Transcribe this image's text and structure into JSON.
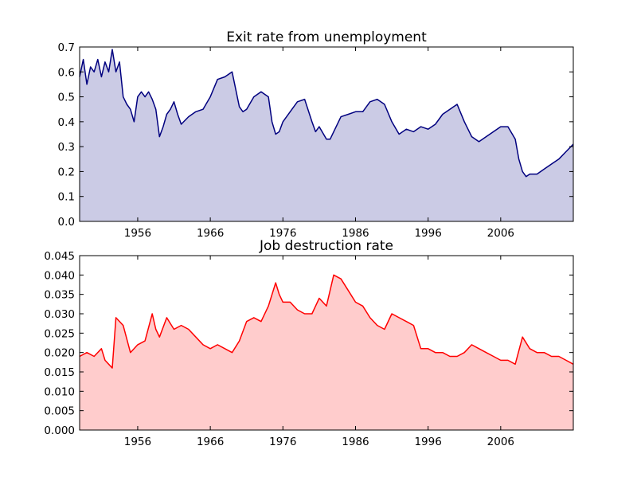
{
  "figure": {
    "background": "#ffffff"
  },
  "chart_data": [
    {
      "type": "area",
      "title": "Exit rate from unemployment",
      "xlabel": "",
      "ylabel": "",
      "xlim": [
        1948,
        2016
      ],
      "ylim": [
        0.0,
        0.7
      ],
      "x_ticks": [
        1956,
        1966,
        1976,
        1986,
        1996,
        2006
      ],
      "x_tick_labels": [
        "1956",
        "1966",
        "1976",
        "1986",
        "1996",
        "2006"
      ],
      "y_ticks": [
        0.0,
        0.1,
        0.2,
        0.3,
        0.4,
        0.5,
        0.6,
        0.7
      ],
      "y_tick_labels": [
        "0.0",
        "0.1",
        "0.2",
        "0.3",
        "0.4",
        "0.5",
        "0.6",
        "0.7"
      ],
      "grid": false,
      "line_color": "#00007f",
      "fill_color": "#cbcbe5",
      "x": [
        1948.0,
        1948.5,
        1949.0,
        1949.5,
        1950.0,
        1950.5,
        1951.0,
        1951.5,
        1952.0,
        1952.5,
        1953.0,
        1953.5,
        1954.0,
        1954.5,
        1955.0,
        1955.5,
        1956.0,
        1956.5,
        1957.0,
        1957.5,
        1958.0,
        1958.5,
        1959.0,
        1959.5,
        1960.0,
        1960.5,
        1961.0,
        1961.5,
        1962.0,
        1963.0,
        1964.0,
        1965.0,
        1966.0,
        1967.0,
        1968.0,
        1969.0,
        1970.0,
        1970.5,
        1971.0,
        1972.0,
        1973.0,
        1974.0,
        1974.5,
        1975.0,
        1975.5,
        1976.0,
        1977.0,
        1978.0,
        1979.0,
        1980.0,
        1980.5,
        1981.0,
        1982.0,
        1982.5,
        1983.0,
        1984.0,
        1985.0,
        1986.0,
        1987.0,
        1988.0,
        1989.0,
        1990.0,
        1991.0,
        1992.0,
        1993.0,
        1994.0,
        1995.0,
        1996.0,
        1997.0,
        1998.0,
        1999.0,
        2000.0,
        2001.0,
        2002.0,
        2003.0,
        2004.0,
        2005.0,
        2006.0,
        2007.0,
        2008.0,
        2008.5,
        2009.0,
        2009.5,
        2010.0,
        2011.0,
        2012.0,
        2013.0,
        2014.0,
        2015.0,
        2016.0
      ],
      "y": [
        0.58,
        0.65,
        0.55,
        0.62,
        0.6,
        0.65,
        0.58,
        0.64,
        0.6,
        0.69,
        0.6,
        0.64,
        0.5,
        0.47,
        0.45,
        0.4,
        0.5,
        0.52,
        0.5,
        0.52,
        0.49,
        0.45,
        0.34,
        0.38,
        0.43,
        0.45,
        0.48,
        0.43,
        0.39,
        0.42,
        0.44,
        0.45,
        0.5,
        0.57,
        0.58,
        0.6,
        0.46,
        0.44,
        0.45,
        0.5,
        0.52,
        0.5,
        0.4,
        0.35,
        0.36,
        0.4,
        0.44,
        0.48,
        0.49,
        0.4,
        0.36,
        0.38,
        0.33,
        0.33,
        0.36,
        0.42,
        0.43,
        0.44,
        0.44,
        0.48,
        0.49,
        0.47,
        0.4,
        0.35,
        0.37,
        0.36,
        0.38,
        0.37,
        0.39,
        0.43,
        0.45,
        0.47,
        0.4,
        0.34,
        0.32,
        0.34,
        0.36,
        0.38,
        0.38,
        0.33,
        0.25,
        0.2,
        0.18,
        0.19,
        0.19,
        0.21,
        0.23,
        0.25,
        0.28,
        0.31
      ]
    },
    {
      "type": "area",
      "title": "Job destruction rate",
      "xlabel": "",
      "ylabel": "",
      "xlim": [
        1948,
        2016
      ],
      "ylim": [
        0.0,
        0.045
      ],
      "x_ticks": [
        1956,
        1966,
        1976,
        1986,
        1996,
        2006
      ],
      "x_tick_labels": [
        "1956",
        "1966",
        "1976",
        "1986",
        "1996",
        "2006"
      ],
      "y_ticks": [
        0.0,
        0.005,
        0.01,
        0.015,
        0.02,
        0.025,
        0.03,
        0.035,
        0.04,
        0.045
      ],
      "y_tick_labels": [
        "0.000",
        "0.005",
        "0.010",
        "0.015",
        "0.020",
        "0.025",
        "0.030",
        "0.035",
        "0.040",
        "0.045"
      ],
      "grid": false,
      "line_color": "#ff0000",
      "fill_color": "#ffcccc",
      "x": [
        1948.0,
        1949.0,
        1950.0,
        1951.0,
        1951.5,
        1952.0,
        1952.5,
        1953.0,
        1954.0,
        1955.0,
        1956.0,
        1957.0,
        1958.0,
        1958.5,
        1959.0,
        1960.0,
        1961.0,
        1962.0,
        1963.0,
        1964.0,
        1965.0,
        1966.0,
        1967.0,
        1968.0,
        1969.0,
        1970.0,
        1971.0,
        1972.0,
        1973.0,
        1974.0,
        1975.0,
        1975.5,
        1976.0,
        1977.0,
        1978.0,
        1979.0,
        1980.0,
        1981.0,
        1982.0,
        1983.0,
        1984.0,
        1985.0,
        1986.0,
        1987.0,
        1988.0,
        1989.0,
        1990.0,
        1991.0,
        1992.0,
        1993.0,
        1994.0,
        1995.0,
        1996.0,
        1997.0,
        1998.0,
        1999.0,
        2000.0,
        2001.0,
        2002.0,
        2003.0,
        2004.0,
        2005.0,
        2006.0,
        2007.0,
        2008.0,
        2009.0,
        2010.0,
        2011.0,
        2012.0,
        2013.0,
        2014.0,
        2015.0,
        2016.0
      ],
      "y": [
        0.019,
        0.02,
        0.019,
        0.021,
        0.018,
        0.017,
        0.016,
        0.029,
        0.027,
        0.02,
        0.022,
        0.023,
        0.03,
        0.026,
        0.024,
        0.029,
        0.026,
        0.027,
        0.026,
        0.024,
        0.022,
        0.021,
        0.022,
        0.021,
        0.02,
        0.023,
        0.028,
        0.029,
        0.028,
        0.032,
        0.038,
        0.035,
        0.033,
        0.033,
        0.031,
        0.03,
        0.03,
        0.034,
        0.032,
        0.04,
        0.039,
        0.036,
        0.033,
        0.032,
        0.029,
        0.027,
        0.026,
        0.03,
        0.029,
        0.028,
        0.027,
        0.021,
        0.021,
        0.02,
        0.02,
        0.019,
        0.019,
        0.02,
        0.022,
        0.021,
        0.02,
        0.019,
        0.018,
        0.018,
        0.017,
        0.024,
        0.021,
        0.02,
        0.02,
        0.019,
        0.019,
        0.018,
        0.017
      ]
    }
  ]
}
